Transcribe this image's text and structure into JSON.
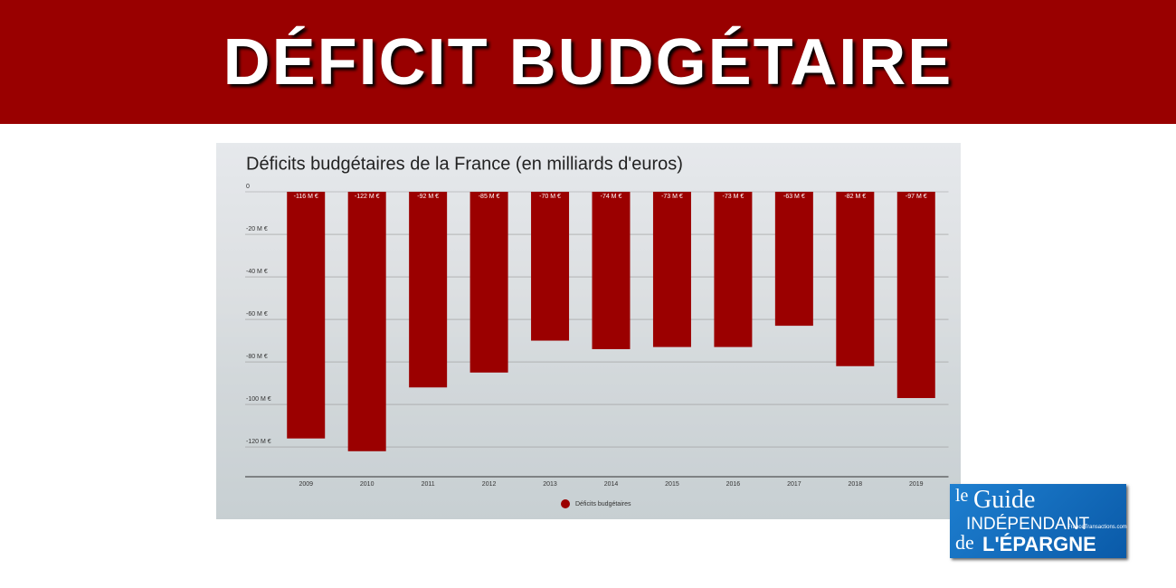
{
  "header": {
    "title": "DÉFICIT BUDGÉTAIRE"
  },
  "chart_data": {
    "type": "bar",
    "title": "Déficits budgétaires de la France (en milliards d'euros)",
    "categories": [
      "2009",
      "2010",
      "2011",
      "2012",
      "2013",
      "2014",
      "2015",
      "2016",
      "2017",
      "2018",
      "2019"
    ],
    "series": [
      {
        "name": "Déficits budgétaires",
        "color": "#9b0000",
        "values": [
          -116,
          -122,
          -92,
          -85,
          -70,
          -74,
          -73,
          -73,
          -63,
          -82,
          -97
        ],
        "value_labels": [
          "-116 M €",
          "-122 M €",
          "-92 M €",
          "-85 M €",
          "-70 M €",
          "-74 M €",
          "-73 M €",
          "-73 M €",
          "-63 M €",
          "-82 M €",
          "-97 M €"
        ]
      }
    ],
    "ylim": [
      -134,
      0
    ],
    "yticks": [
      0,
      {
        "value": -20,
        "label": "-20 M €"
      },
      {
        "value": -40,
        "label": "-40 M €"
      },
      {
        "value": -60,
        "label": "-60 M €"
      },
      {
        "value": -80,
        "label": "-80 M €"
      },
      {
        "value": -100,
        "label": "-100 M €"
      },
      {
        "value": -120,
        "label": "-120 M €"
      }
    ],
    "grid": true,
    "legend": "bottom"
  },
  "logo": {
    "le": "le",
    "guide": "Guide",
    "independant": "INDÉPENDANT",
    "de": "de",
    "epargne": "L'ÉPARGNE",
    "site": "FranceTransactions.com"
  }
}
